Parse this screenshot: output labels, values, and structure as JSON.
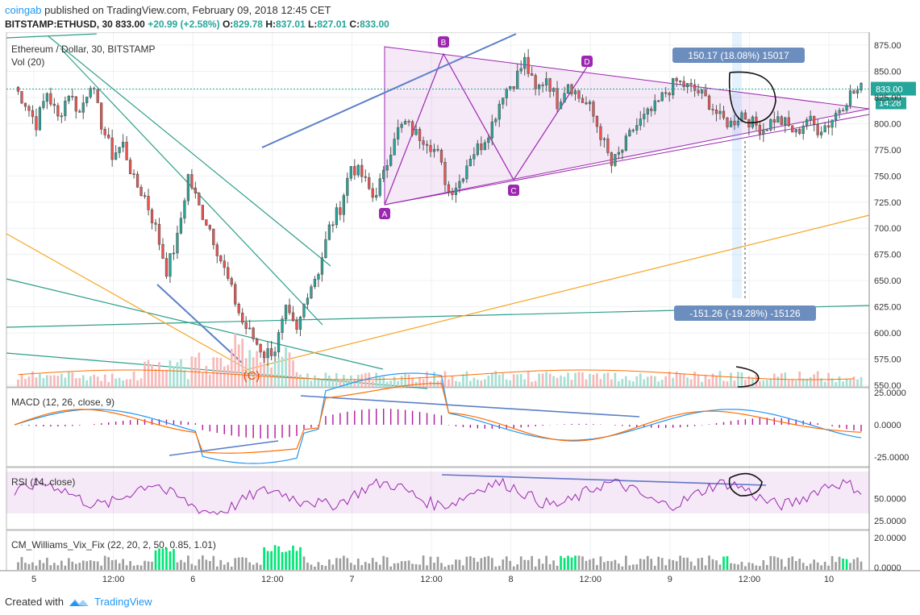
{
  "header": {
    "user": "coingab",
    "published_text": "published on TradingView.com, February 09, 2018 12:45 CET",
    "symbol_line": "BITSTAMP:ETHUSD, 30",
    "price": "833.00",
    "change": "+20.99 (+2.58%)",
    "o_label": "O:",
    "o": "829.78",
    "h_label": "H:",
    "h": "837.01",
    "l_label": "L:",
    "l": "827.01",
    "c_label": "C:",
    "c": "833.00"
  },
  "colors": {
    "up": "#26a69a",
    "down": "#ef5350",
    "pattern": "#9c27b0",
    "trend_blue": "#5b7fc7",
    "trend_green": "#2e9e8a",
    "orange": "#f5a623",
    "macd": "#2196f3",
    "signal": "#ff6d00",
    "rsi": "#9c27b0",
    "vix_high": "#00e676",
    "vix_low": "#9e9e9e"
  },
  "chart_data": [
    {
      "type": "candlestick",
      "title": "Ethereum / Dollar, 30, BITSTAMP",
      "volume_label": "Vol (20)",
      "x_ticks": [
        "5",
        "12:00",
        "6",
        "12:00",
        "7",
        "12:00",
        "8",
        "12:00",
        "9",
        "12:00",
        "10"
      ],
      "ylim": [
        550,
        875
      ],
      "y_ticks": [
        "875.00",
        "850.00",
        "825.00",
        "800.00",
        "775.00",
        "750.00",
        "725.00",
        "700.00",
        "675.00",
        "650.00",
        "625.00",
        "600.00",
        "575.00",
        "550.00"
      ],
      "close_path": [
        [
          0,
          835
        ],
        [
          3,
          820
        ],
        [
          6,
          800
        ],
        [
          9,
          830
        ],
        [
          12,
          805
        ],
        [
          15,
          830
        ],
        [
          18,
          810
        ],
        [
          21,
          840
        ],
        [
          24,
          800
        ],
        [
          27,
          770
        ],
        [
          30,
          780
        ],
        [
          33,
          745
        ],
        [
          36,
          730
        ],
        [
          39,
          700
        ],
        [
          42,
          660
        ],
        [
          45,
          690
        ],
        [
          48,
          750
        ],
        [
          51,
          720
        ],
        [
          54,
          700
        ],
        [
          57,
          670
        ],
        [
          60,
          640
        ],
        [
          63,
          610
        ],
        [
          66,
          595
        ],
        [
          69,
          580
        ],
        [
          72,
          585
        ],
        [
          75,
          620
        ],
        [
          78,
          600
        ],
        [
          81,
          640
        ],
        [
          84,
          660
        ],
        [
          87,
          700
        ],
        [
          90,
          720
        ],
        [
          93,
          760
        ],
        [
          96,
          750
        ],
        [
          99,
          730
        ],
        [
          102,
          750
        ],
        [
          105,
          790
        ],
        [
          108,
          800
        ],
        [
          111,
          790
        ],
        [
          114,
          785
        ],
        [
          117,
          770
        ],
        [
          120,
          735
        ],
        [
          123,
          745
        ],
        [
          126,
          770
        ],
        [
          129,
          780
        ],
        [
          132,
          800
        ],
        [
          135,
          830
        ],
        [
          138,
          840
        ],
        [
          141,
          860
        ],
        [
          144,
          830
        ],
        [
          147,
          845
        ],
        [
          150,
          820
        ],
        [
          153,
          840
        ],
        [
          156,
          825
        ],
        [
          159,
          815
        ],
        [
          162,
          790
        ],
        [
          165,
          760
        ],
        [
          168,
          775
        ],
        [
          171,
          795
        ],
        [
          174,
          805
        ],
        [
          177,
          815
        ],
        [
          180,
          830
        ],
        [
          183,
          840
        ],
        [
          186,
          835
        ],
        [
          189,
          830
        ],
        [
          192,
          820
        ],
        [
          195,
          805
        ],
        [
          198,
          800
        ],
        [
          201,
          810
        ],
        [
          204,
          800
        ],
        [
          207,
          795
        ],
        [
          210,
          805
        ],
        [
          213,
          800
        ],
        [
          216,
          790
        ],
        [
          219,
          805
        ],
        [
          222,
          795
        ],
        [
          225,
          800
        ],
        [
          228,
          815
        ],
        [
          231,
          828
        ],
        [
          234,
          833
        ]
      ],
      "price_label": "833.00",
      "countdown": "14:28",
      "pattern_points": [
        "A",
        "B",
        "C",
        "D"
      ],
      "measure_top": "150.17 (18.08%) 15017",
      "measure_bottom": "-151.26 (-19.28%) -15126",
      "annotations": [
        "(C)"
      ]
    },
    {
      "type": "line",
      "title": "MACD (12, 26, close, 9)",
      "y_ticks": [
        "25.0000",
        "0.0000",
        "-25.0000"
      ]
    },
    {
      "type": "line",
      "title": "RSI (14, close)",
      "y_ticks": [
        "50.0000",
        "25.0000"
      ]
    },
    {
      "type": "bar",
      "title": "CM_Williams_Vix_Fix (22, 20, 2, 50, 0.85, 1.01)",
      "y_ticks": [
        "20.0000",
        "0.0000"
      ]
    }
  ],
  "footer": {
    "created_with": "Created with",
    "brand": "TradingView"
  }
}
